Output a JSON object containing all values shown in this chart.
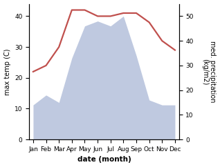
{
  "months": [
    "Jan",
    "Feb",
    "Mar",
    "Apr",
    "May",
    "Jun",
    "Jul",
    "Aug",
    "Sep",
    "Oct",
    "Nov",
    "Dec"
  ],
  "temperature": [
    22,
    24,
    30,
    42,
    42,
    40,
    40,
    41,
    41,
    38,
    32,
    29
  ],
  "precipitation": [
    14,
    18,
    15,
    33,
    46,
    48,
    46,
    50,
    34,
    16,
    14,
    14
  ],
  "temp_color": "#c0504d",
  "precip_fill_color": "#bfc9e0",
  "ylabel_left": "max temp (C)",
  "ylabel_right": "med. precipitation\n(kg/m2)",
  "xlabel": "date (month)",
  "ylim_left": [
    0,
    44
  ],
  "ylim_right": [
    0,
    55
  ],
  "yticks_left": [
    0,
    10,
    20,
    30,
    40
  ],
  "yticks_right": [
    0,
    10,
    20,
    30,
    40,
    50
  ],
  "background_color": "#ffffff",
  "temp_linewidth": 1.6,
  "xlabel_fontsize": 7.5,
  "ylabel_fontsize": 7,
  "tick_fontsize": 6.5
}
